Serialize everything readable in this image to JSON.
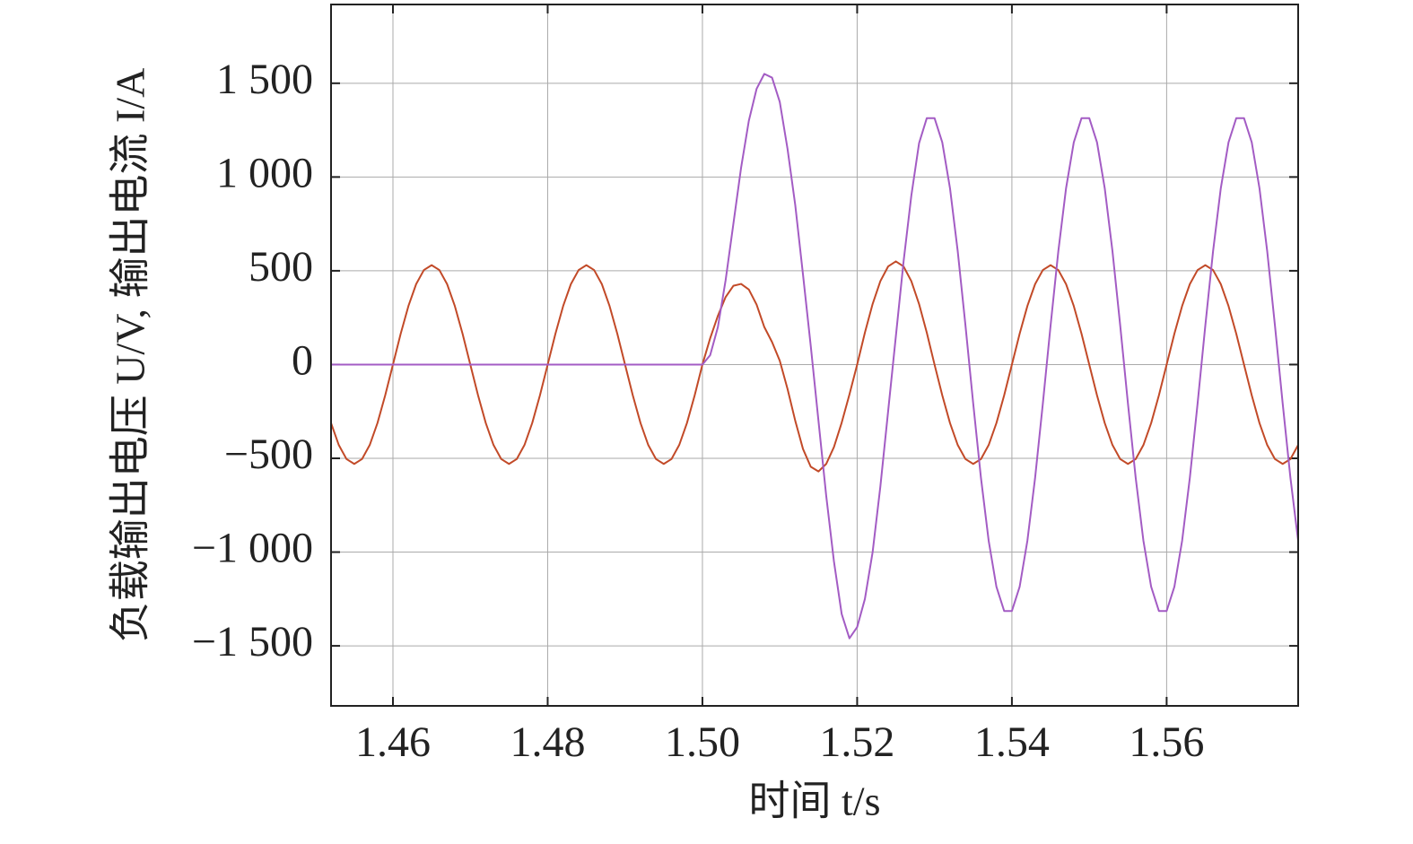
{
  "chart_data": {
    "type": "line",
    "x_label": "时间 t/s",
    "y_label": "负载输出电压 U/V, 输出电流 I/A",
    "xlim": [
      1.452,
      1.577
    ],
    "ylim": [
      -1820,
      1920
    ],
    "xticks": [
      1.46,
      1.48,
      {
        "value": 1.5,
        "label": "1.50"
      },
      1.52,
      1.54,
      1.56
    ],
    "yticks": [
      {
        "value": -1500,
        "label": "−1 500"
      },
      {
        "value": -1000,
        "label": "−1 000"
      },
      {
        "value": -500,
        "label": "−500"
      },
      0,
      500,
      {
        "value": 1000,
        "label": "1 000"
      },
      {
        "value": 1500,
        "label": "1 500"
      }
    ],
    "grid": true,
    "x": [
      1.452,
      1.453,
      1.454,
      1.455,
      1.456,
      1.457,
      1.458,
      1.459,
      1.46,
      1.461,
      1.462,
      1.463,
      1.464,
      1.465,
      1.466,
      1.467,
      1.468,
      1.469,
      1.47,
      1.471,
      1.472,
      1.473,
      1.474,
      1.475,
      1.476,
      1.477,
      1.478,
      1.479,
      1.48,
      1.481,
      1.482,
      1.483,
      1.484,
      1.485,
      1.486,
      1.487,
      1.488,
      1.489,
      1.49,
      1.491,
      1.492,
      1.493,
      1.494,
      1.495,
      1.496,
      1.497,
      1.498,
      1.499,
      1.5,
      1.501,
      1.502,
      1.503,
      1.504,
      1.505,
      1.506,
      1.507,
      1.508,
      1.509,
      1.51,
      1.511,
      1.512,
      1.513,
      1.514,
      1.515,
      1.516,
      1.517,
      1.518,
      1.519,
      1.52,
      1.521,
      1.522,
      1.523,
      1.524,
      1.525,
      1.526,
      1.527,
      1.528,
      1.529,
      1.53,
      1.531,
      1.532,
      1.533,
      1.534,
      1.535,
      1.536,
      1.537,
      1.538,
      1.539,
      1.54,
      1.541,
      1.542,
      1.543,
      1.544,
      1.545,
      1.546,
      1.547,
      1.548,
      1.549,
      1.55,
      1.551,
      1.552,
      1.553,
      1.554,
      1.555,
      1.556,
      1.557,
      1.558,
      1.559,
      1.56,
      1.561,
      1.562,
      1.563,
      1.564,
      1.565,
      1.566,
      1.567,
      1.568,
      1.569,
      1.57,
      1.571,
      1.572,
      1.573,
      1.574,
      1.575,
      1.576,
      1.577
    ],
    "series": [
      {
        "color": "#c24a28",
        "values": [
          -312,
          -429,
          -504,
          -530,
          -504,
          -429,
          -312,
          -164,
          0,
          164,
          312,
          429,
          504,
          530,
          504,
          429,
          312,
          164,
          0,
          -164,
          -312,
          -429,
          -504,
          -530,
          -504,
          -429,
          -312,
          -164,
          0,
          164,
          312,
          429,
          504,
          530,
          504,
          429,
          312,
          164,
          0,
          -164,
          -312,
          -429,
          -504,
          -530,
          -504,
          -429,
          -312,
          -164,
          0,
          140,
          260,
          360,
          420,
          430,
          400,
          320,
          200,
          120,
          20,
          -130,
          -300,
          -450,
          -545,
          -570,
          -530,
          -440,
          -310,
          -160,
          0,
          170,
          323,
          445,
          523,
          550,
          523,
          445,
          323,
          170,
          0,
          -164,
          -312,
          -429,
          -504,
          -530,
          -504,
          -429,
          -312,
          -164,
          0,
          164,
          312,
          429,
          504,
          530,
          504,
          429,
          312,
          164,
          0,
          -164,
          -312,
          -429,
          -504,
          -530,
          -504,
          -429,
          -312,
          -164,
          0,
          164,
          312,
          429,
          504,
          530,
          504,
          429,
          312,
          164,
          0,
          -164,
          -312,
          -429,
          -504,
          -530,
          -504,
          -429
        ]
      },
      {
        "color": "#a35cc4",
        "values": [
          0,
          0,
          0,
          0,
          0,
          0,
          0,
          0,
          0,
          0,
          0,
          0,
          0,
          0,
          0,
          0,
          0,
          0,
          0,
          0,
          0,
          0,
          0,
          0,
          0,
          0,
          0,
          0,
          0,
          0,
          0,
          0,
          0,
          0,
          0,
          0,
          0,
          0,
          0,
          0,
          0,
          0,
          0,
          0,
          0,
          0,
          0,
          0,
          0,
          50,
          200,
          450,
          750,
          1050,
          1300,
          1470,
          1550,
          1530,
          1400,
          1150,
          850,
          480,
          100,
          -300,
          -700,
          -1050,
          -1330,
          -1460,
          -1400,
          -1250,
          -1000,
          -650,
          -250,
          150,
          550,
          900,
          1180,
          1314,
          1314,
          1185,
          940,
          604,
          208,
          -208,
          -604,
          -940,
          -1185,
          -1314,
          -1314,
          -1185,
          -940,
          -604,
          -208,
          208,
          604,
          940,
          1185,
          1314,
          1314,
          1185,
          940,
          604,
          208,
          -208,
          -604,
          -940,
          -1185,
          -1314,
          -1314,
          -1185,
          -940,
          -604,
          -208,
          208,
          604,
          940,
          1185,
          1314,
          1314,
          1185,
          940,
          604,
          208,
          -208,
          -604,
          -940
        ]
      }
    ]
  }
}
